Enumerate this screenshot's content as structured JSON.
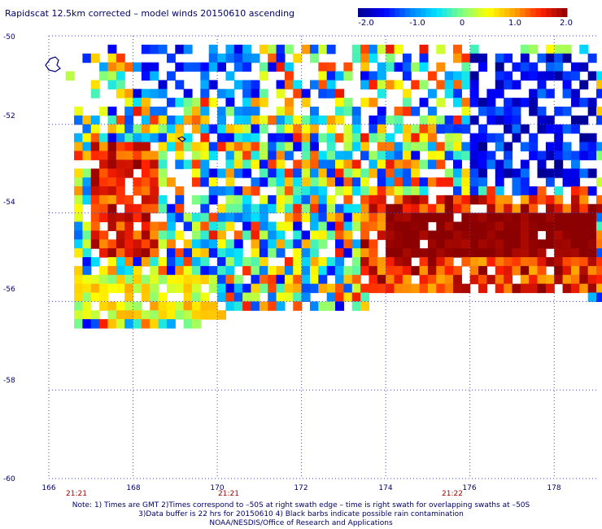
{
  "title": "Rapidscat 12.5km corrected – model winds 20150610 ascending",
  "colorbar": {
    "ticks": [
      "-2.0",
      "-1.0",
      "0",
      "1.0",
      "2.0"
    ],
    "range": [
      -2.0,
      2.0
    ],
    "colors": [
      "#00008b",
      "#0000ff",
      "#0080ff",
      "#00e0ff",
      "#80ff80",
      "#ffff00",
      "#ffa000",
      "#ff2000",
      "#8b0000"
    ]
  },
  "time_labels": [
    "21:21",
    "21:21",
    "21:22"
  ],
  "notes": [
    "Note: 1) Times are GMT 2)Times correspond to –50S at right swath edge – time is right swath for overlapping swaths at –50S",
    "3)Data buffer is 22 hrs for 20150610 4) Black barbs indicate possible rain contamination",
    "NOAA/NESDIS/Office of Research and Applications"
  ],
  "chart_data": {
    "type": "heatmap",
    "title": "Rapidscat 12.5km corrected – model winds 20150610 ascending",
    "x_ticks": [
      "166",
      "168",
      "170",
      "172",
      "174",
      "176",
      "178"
    ],
    "y_ticks": [
      "-50",
      "-52",
      "-54",
      "-56",
      "-58",
      "-60"
    ],
    "xlim": [
      166,
      179
    ],
    "ylim": [
      -60,
      -50
    ],
    "grid": true,
    "value_range": [
      -2.0,
      2.0
    ],
    "regions": [
      {
        "lon": [
          174,
          179
        ],
        "lat": [
          -55.0,
          -54.0
        ],
        "value": 2.0
      },
      {
        "lon": [
          167,
          168.5
        ],
        "lat": [
          -55.0,
          -52.5
        ],
        "value": 1.5
      },
      {
        "lon": [
          168,
          171
        ],
        "lat": [
          -51.5,
          -50.0
        ],
        "value": -1.2
      },
      {
        "lon": [
          176,
          179
        ],
        "lat": [
          -53.5,
          -50.5
        ],
        "value": -1.5
      },
      {
        "lon": [
          166.5,
          170
        ],
        "lat": [
          -56.5,
          -55.5
        ],
        "value": 0.5
      }
    ]
  }
}
